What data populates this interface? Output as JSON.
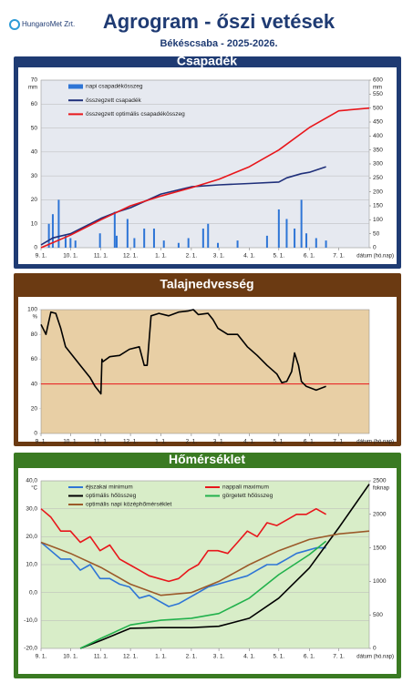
{
  "header": {
    "logo": "HungaroMet Zrt.",
    "title": "Agrogram - őszi vetések",
    "subtitle": "Békéscsaba - 2025-2026."
  },
  "chart_data": [
    {
      "type": "combo",
      "title": "Csapadék",
      "ylabel": "mm",
      "y2label": "mm",
      "xlabel": "dátum (hó.nap)",
      "xlim": [
        0,
        334
      ],
      "xticks": [
        {
          "value": 0,
          "label": "9. 1."
        },
        {
          "value": 30,
          "label": "10. 1."
        },
        {
          "value": 61,
          "label": "11. 1."
        },
        {
          "value": 91,
          "label": "12. 1."
        },
        {
          "value": 122,
          "label": "1. 1."
        },
        {
          "value": 153,
          "label": "2. 1."
        },
        {
          "value": 181,
          "label": "3. 1."
        },
        {
          "value": 212,
          "label": "4. 1."
        },
        {
          "value": 242,
          "label": "5. 1."
        },
        {
          "value": 273,
          "label": "6. 1."
        },
        {
          "value": 303,
          "label": "7. 1."
        }
      ],
      "ylim": [
        0,
        70
      ],
      "yticks": [
        0,
        10,
        20,
        30,
        40,
        50,
        60,
        70
      ],
      "y2lim": [
        0,
        600
      ],
      "y2ticks": [
        0,
        50,
        100,
        150,
        200,
        250,
        300,
        350,
        400,
        450,
        500,
        550,
        600
      ],
      "grid": true,
      "series": [
        {
          "name": "napi csapadékösszeg",
          "type": "bar",
          "color": "#2e75d6",
          "x": [
            8,
            12,
            18,
            25,
            30,
            35,
            60,
            75,
            77,
            88,
            95,
            105,
            115,
            125,
            140,
            150,
            165,
            170,
            180,
            200,
            230,
            242,
            250,
            258,
            265,
            270,
            280,
            290
          ],
          "values": [
            10,
            14,
            20,
            5,
            4,
            3,
            6,
            15,
            5,
            12,
            4,
            8,
            8,
            3,
            2,
            4,
            8,
            10,
            2,
            3,
            5,
            16,
            12,
            8,
            20,
            6,
            4,
            3
          ]
        },
        {
          "name": "összegzett csapadék",
          "type": "line",
          "axis": "y2",
          "color": "#1f2f7a",
          "x": [
            0,
            12,
            18,
            30,
            61,
            75,
            91,
            122,
            153,
            181,
            212,
            242,
            250,
            265,
            273,
            290
          ],
          "values": [
            10,
            35,
            40,
            50,
            105,
            125,
            143,
            192,
            218,
            225,
            230,
            235,
            250,
            265,
            270,
            290
          ]
        },
        {
          "name": "összegzett optimális csapadékösszeg",
          "type": "line",
          "axis": "y2",
          "color": "#e8161b",
          "x": [
            0,
            30,
            61,
            91,
            122,
            153,
            181,
            212,
            242,
            273,
            303,
            334
          ],
          "values": [
            0,
            45,
            100,
            150,
            185,
            215,
            245,
            290,
            350,
            430,
            490,
            500
          ]
        }
      ]
    },
    {
      "type": "combo",
      "title": "Talajnedvesség",
      "ylabel": "%",
      "xlabel": "dátum (hó.nap)",
      "xlim": [
        0,
        334
      ],
      "xticks": [
        {
          "value": 0,
          "label": "9. 1."
        },
        {
          "value": 30,
          "label": "10. 1."
        },
        {
          "value": 61,
          "label": "11. 1."
        },
        {
          "value": 91,
          "label": "12. 1."
        },
        {
          "value": 122,
          "label": "1. 1."
        },
        {
          "value": 153,
          "label": "2. 1."
        },
        {
          "value": 181,
          "label": "3. 1."
        },
        {
          "value": 212,
          "label": "4. 1."
        },
        {
          "value": 242,
          "label": "5. 1."
        },
        {
          "value": 273,
          "label": "6. 1."
        },
        {
          "value": 303,
          "label": "7. 1."
        }
      ],
      "ylim": [
        0,
        100
      ],
      "yticks": [
        0,
        20,
        40,
        60,
        80,
        100
      ],
      "grid": false,
      "threshold": 40,
      "threshold_color": "#e8161b",
      "series": [
        {
          "type": "line",
          "color": "#000000",
          "x": [
            0,
            5,
            10,
            15,
            20,
            25,
            30,
            40,
            50,
            55,
            60,
            61,
            62,
            63,
            70,
            80,
            90,
            100,
            105,
            108,
            112,
            120,
            130,
            140,
            150,
            155,
            160,
            170,
            175,
            180,
            190,
            200,
            210,
            220,
            230,
            240,
            245,
            250,
            255,
            258,
            262,
            265,
            270,
            280,
            290
          ],
          "values": [
            88,
            80,
            98,
            97,
            85,
            70,
            65,
            55,
            45,
            38,
            33,
            32,
            60,
            58,
            62,
            63,
            68,
            70,
            55,
            55,
            95,
            97,
            95,
            98,
            99,
            100,
            96,
            97,
            92,
            85,
            80,
            80,
            70,
            63,
            55,
            48,
            41,
            42,
            50,
            65,
            55,
            42,
            38,
            35,
            38
          ]
        }
      ]
    },
    {
      "type": "combo",
      "title": "Hőmérséklet",
      "ylabel": "°C",
      "y2label": "foknap",
      "xlabel": "dátum (hó.nap)",
      "xlim": [
        0,
        334
      ],
      "xticks": [
        {
          "value": 0,
          "label": "9. 1."
        },
        {
          "value": 30,
          "label": "10. 1."
        },
        {
          "value": 61,
          "label": "11. 1."
        },
        {
          "value": 91,
          "label": "12. 1."
        },
        {
          "value": 122,
          "label": "1. 1."
        },
        {
          "value": 153,
          "label": "2. 1."
        },
        {
          "value": 181,
          "label": "3. 1."
        },
        {
          "value": 212,
          "label": "4. 1."
        },
        {
          "value": 242,
          "label": "5. 1."
        },
        {
          "value": 273,
          "label": "6. 1."
        },
        {
          "value": 303,
          "label": "7. 1."
        }
      ],
      "ylim": [
        -20,
        40
      ],
      "yticks": [
        {
          "value": -20,
          "label": "-20,0"
        },
        {
          "value": -10,
          "label": "-10,0"
        },
        {
          "value": 0,
          "label": "0,0"
        },
        {
          "value": 10,
          "label": "10,0"
        },
        {
          "value": 20,
          "label": "20,0"
        },
        {
          "value": 30,
          "label": "30,0"
        },
        {
          "value": 40,
          "label": "40,0"
        }
      ],
      "y2lim": [
        0,
        2500
      ],
      "y2ticks": [
        0,
        500,
        1000,
        1500,
        2000,
        2500
      ],
      "grid": true,
      "series": [
        {
          "name": "éjszakai minimum",
          "type": "line",
          "color": "#2e75d6",
          "x": [
            0,
            10,
            20,
            30,
            40,
            50,
            60,
            70,
            80,
            90,
            100,
            110,
            120,
            130,
            140,
            150,
            160,
            170,
            180,
            190,
            200,
            210,
            220,
            230,
            240,
            250,
            260,
            270,
            280,
            290
          ],
          "values": [
            18,
            15,
            12,
            12,
            8,
            10,
            5,
            5,
            3,
            2,
            -2,
            -1,
            -3,
            -5,
            -4,
            -2,
            0,
            2,
            3,
            4,
            5,
            6,
            8,
            10,
            10,
            12,
            14,
            15,
            16,
            16
          ]
        },
        {
          "name": "nappali maximum",
          "type": "line",
          "color": "#e8161b",
          "x": [
            0,
            10,
            20,
            30,
            40,
            50,
            60,
            70,
            80,
            90,
            100,
            110,
            120,
            130,
            140,
            150,
            160,
            170,
            180,
            190,
            200,
            210,
            220,
            230,
            240,
            250,
            260,
            270,
            280,
            290
          ],
          "values": [
            30,
            27,
            22,
            22,
            18,
            20,
            15,
            17,
            12,
            10,
            8,
            6,
            5,
            4,
            5,
            8,
            10,
            15,
            15,
            14,
            18,
            22,
            20,
            25,
            24,
            26,
            28,
            28,
            30,
            28
          ]
        },
        {
          "name": "optimális hőösszeg",
          "type": "line",
          "axis": "y2",
          "color": "#000000",
          "x": [
            40,
            61,
            91,
            122,
            153,
            181,
            212,
            242,
            273,
            303,
            334
          ],
          "values": [
            0,
            120,
            300,
            310,
            310,
            330,
            450,
            750,
            1200,
            1800,
            2450
          ]
        },
        {
          "name": "görgetett hőösszeg",
          "type": "line",
          "axis": "y2",
          "color": "#22b14c",
          "x": [
            40,
            61,
            91,
            122,
            153,
            181,
            212,
            242,
            273,
            290
          ],
          "values": [
            0,
            150,
            350,
            420,
            450,
            520,
            750,
            1100,
            1400,
            1600
          ]
        },
        {
          "name": "optimális napi középhőmérséklet",
          "type": "line",
          "color": "#9b5a2a",
          "x": [
            0,
            30,
            61,
            91,
            122,
            153,
            181,
            212,
            242,
            273,
            303,
            334
          ],
          "values": [
            18,
            14,
            9,
            3,
            -1,
            0,
            4,
            10,
            15,
            19,
            21,
            22
          ]
        }
      ]
    }
  ]
}
